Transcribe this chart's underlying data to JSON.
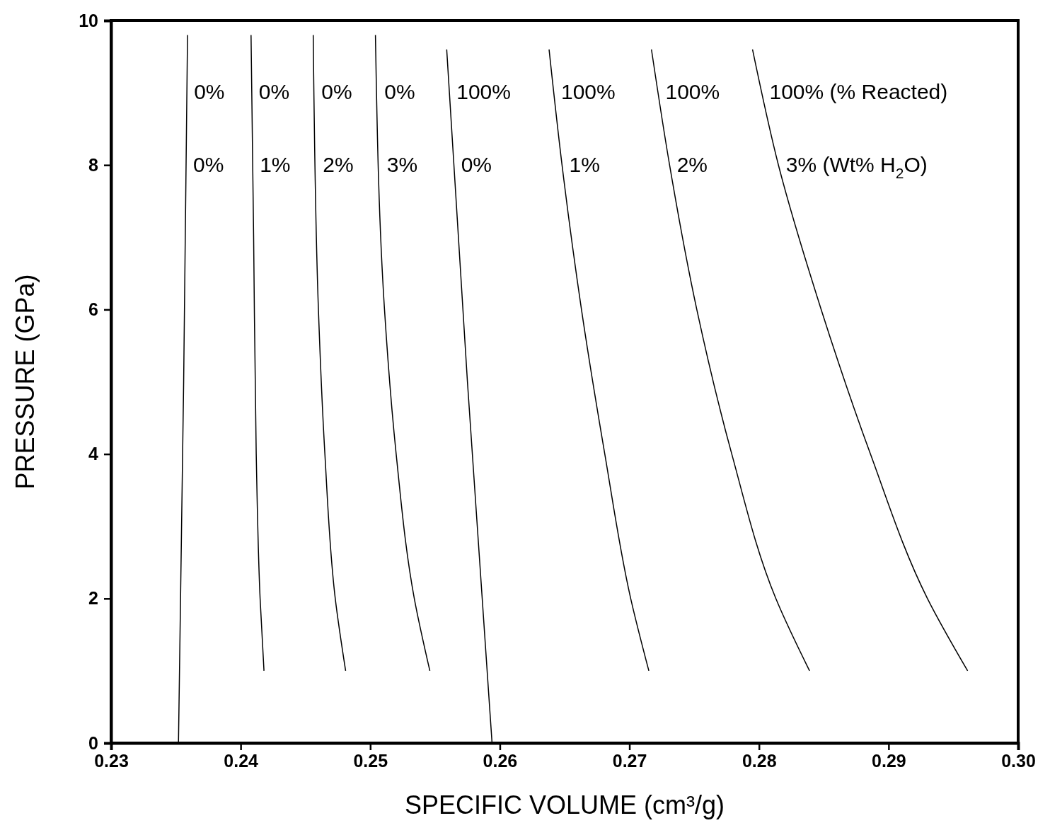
{
  "chart_data": {
    "type": "line",
    "xlabel": "SPECIFIC VOLUME (cm³/g)",
    "ylabel": "PRESSURE (GPa)",
    "xlim": [
      0.23,
      0.3
    ],
    "ylim": [
      0,
      10
    ],
    "xticks": [
      0.23,
      0.24,
      0.25,
      0.26,
      0.27,
      0.28,
      0.29,
      {
        "value": 0.3,
        "label": "0.30"
      }
    ],
    "yticks": [
      0,
      2,
      4,
      6,
      8,
      10
    ],
    "grid": false,
    "marker": "none",
    "line_style": "solid",
    "series": [
      {
        "color": "#000000",
        "x": [
          0.2352,
          0.2356,
          0.2359
        ],
        "values": [
          0,
          5,
          9.8
        ]
      },
      {
        "color": "#000000",
        "x": [
          0.2418,
          0.2415,
          0.2412,
          0.241,
          0.2408
        ],
        "values": [
          1,
          2,
          4,
          7,
          9.8
        ]
      },
      {
        "color": "#000000",
        "x": [
          0.2481,
          0.2473,
          0.2465,
          0.246,
          0.2456
        ],
        "values": [
          1,
          2,
          4,
          6,
          9.8
        ]
      },
      {
        "color": "#000000",
        "x": [
          0.2546,
          0.2534,
          0.252,
          0.2511,
          0.2504
        ],
        "values": [
          1,
          2,
          4,
          6,
          9.8
        ]
      },
      {
        "color": "#000000",
        "x": [
          0.2594,
          0.2575,
          0.2559
        ],
        "values": [
          0,
          5,
          9.6
        ]
      },
      {
        "color": "#000000",
        "x": [
          0.2715,
          0.2701,
          0.2681,
          0.2663,
          0.2648,
          0.2638
        ],
        "values": [
          1,
          2,
          4,
          6,
          8,
          9.6
        ]
      },
      {
        "color": "#000000",
        "x": [
          0.2839,
          0.2813,
          0.2779,
          0.2752,
          0.2731,
          0.2717
        ],
        "values": [
          1,
          2,
          4,
          6,
          8,
          9.6
        ]
      },
      {
        "color": "#000000",
        "x": [
          0.2961,
          0.293,
          0.2886,
          0.2848,
          0.2815,
          0.2795
        ],
        "values": [
          1,
          2,
          4,
          6,
          8,
          9.6
        ]
      }
    ],
    "annotations": [
      "0%",
      "0%",
      "0%",
      "0%",
      "100%",
      "100%",
      "100%",
      "100%   (% Reacted)",
      "0%",
      "1%",
      "2%",
      "3%",
      "0%",
      "1%",
      "2%",
      "3% (Wt% H$_{2}$O)"
    ]
  }
}
